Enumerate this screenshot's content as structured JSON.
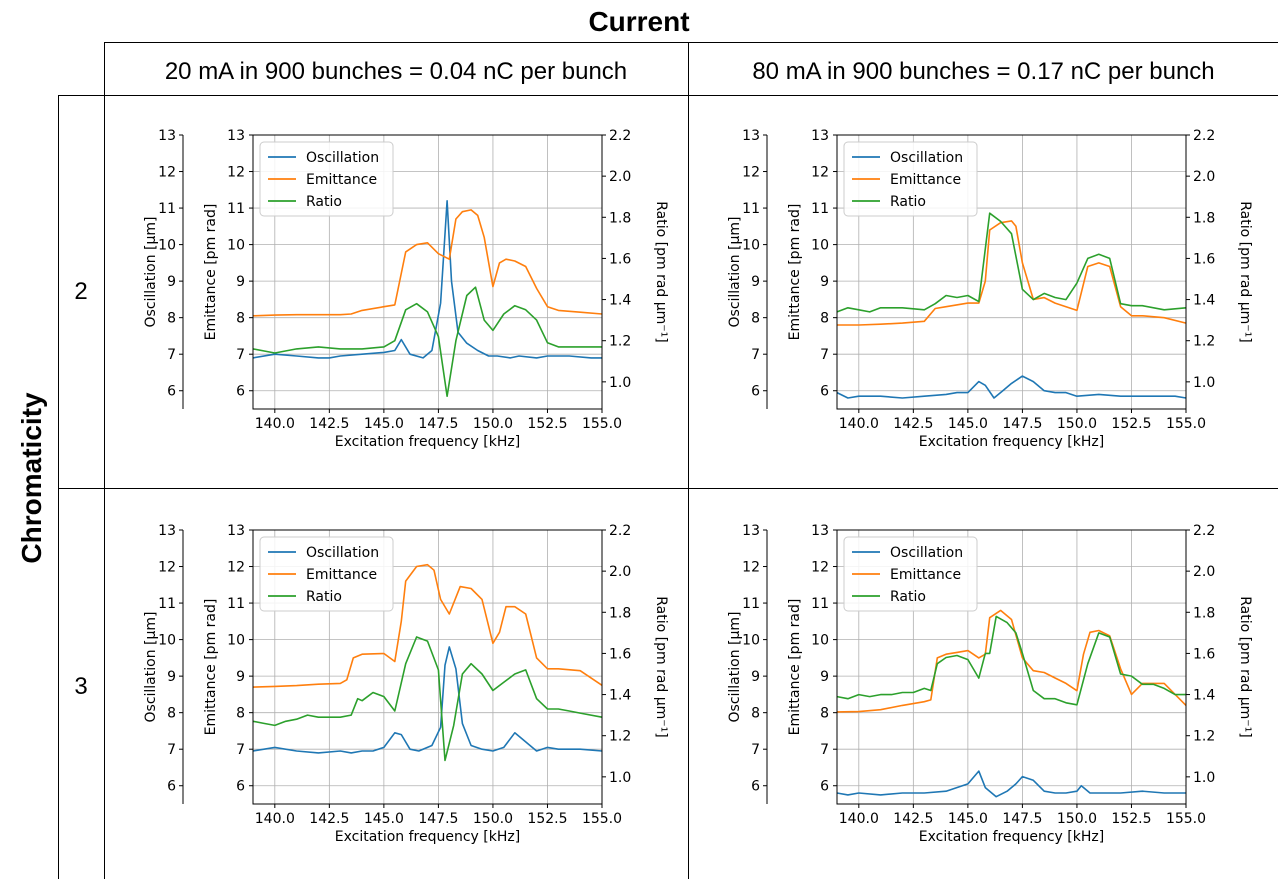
{
  "header": {
    "column_title": "Current",
    "row_title": "Chromaticity",
    "columns": [
      "20 mA in 900 bunches = 0.04 nC per bunch",
      "80 mA in 900 bunches = 0.17 nC per bunch"
    ],
    "rows": [
      "2",
      "3"
    ]
  },
  "colors": {
    "oscillation": "#1f77b4",
    "emittance": "#ff7f0e",
    "ratio": "#2ca02c"
  },
  "chart_data": [
    {
      "type": "line",
      "panel": "chromaticity-2-20mA",
      "xlabel": "Excitation frequency [kHz]",
      "ylabel_osc": "Oscillation [µm]",
      "ylabel_emit": "Emittance [pm rad]",
      "ylabel_ratio": "Ratio [pm rad µm⁻¹]",
      "xlim": [
        139,
        155
      ],
      "xticks": [
        "140.0",
        "142.5",
        "145.0",
        "147.5",
        "150.0",
        "152.5",
        "155.0"
      ],
      "ylim": [
        5.5,
        13
      ],
      "yticks": [
        "6",
        "7",
        "8",
        "9",
        "10",
        "11",
        "12",
        "13"
      ],
      "ratio_lim": [
        0.868,
        2.2
      ],
      "ratio_ticks": [
        "1.0",
        "1.2",
        "1.4",
        "1.6",
        "1.8",
        "2.0",
        "2.2"
      ],
      "legend": [
        "Oscillation",
        "Emittance",
        "Ratio"
      ],
      "grid": true,
      "series": [
        {
          "name": "Oscillation",
          "axis": "left",
          "x": [
            139,
            140,
            141,
            142,
            142.5,
            143,
            144,
            145,
            145.5,
            145.8,
            146.2,
            146.8,
            147.2,
            147.6,
            147.9,
            148.1,
            148.4,
            148.8,
            149.3,
            149.8,
            150.2,
            150.8,
            151.2,
            152,
            152.5,
            153.5,
            154.5,
            155
          ],
          "y": [
            6.9,
            7,
            6.95,
            6.9,
            6.9,
            6.95,
            7,
            7.05,
            7.1,
            7.4,
            7,
            6.9,
            7.1,
            8.4,
            11.2,
            9,
            7.6,
            7.3,
            7.1,
            6.95,
            6.95,
            6.9,
            6.95,
            6.9,
            6.95,
            6.95,
            6.9,
            6.9
          ]
        },
        {
          "name": "Emittance",
          "axis": "left",
          "x": [
            139,
            140,
            141,
            142,
            143,
            143.5,
            144,
            145,
            145.5,
            146,
            146.5,
            147,
            147.5,
            148,
            148.3,
            148.6,
            149,
            149.3,
            149.6,
            150,
            150.3,
            150.6,
            151,
            151.5,
            152,
            152.5,
            153,
            154,
            155
          ],
          "y": [
            8.05,
            8.07,
            8.08,
            8.08,
            8.08,
            8.1,
            8.2,
            8.3,
            8.35,
            9.8,
            10,
            10.05,
            9.75,
            9.6,
            10.7,
            10.9,
            10.95,
            10.8,
            10.2,
            8.85,
            9.5,
            9.6,
            9.55,
            9.4,
            8.8,
            8.3,
            8.2,
            8.15,
            8.1
          ]
        },
        {
          "name": "Ratio",
          "axis": "right",
          "x": [
            139,
            140,
            141,
            142,
            143,
            144,
            145,
            145.5,
            146,
            146.5,
            147,
            147.5,
            147.9,
            148.3,
            148.8,
            149.2,
            149.6,
            150,
            150.5,
            151,
            151.5,
            152,
            152.5,
            153,
            154,
            155
          ],
          "y": [
            1.16,
            1.14,
            1.16,
            1.17,
            1.16,
            1.16,
            1.17,
            1.2,
            1.35,
            1.38,
            1.34,
            1.22,
            0.93,
            1.2,
            1.42,
            1.46,
            1.3,
            1.25,
            1.33,
            1.37,
            1.35,
            1.3,
            1.19,
            1.17,
            1.17,
            1.17
          ]
        }
      ]
    },
    {
      "type": "line",
      "panel": "chromaticity-2-80mA",
      "xlabel": "Excitation frequency [kHz]",
      "ylabel_osc": "Oscillation [µm]",
      "ylabel_emit": "Emittance [pm rad]",
      "ylabel_ratio": "Ratio [pm rad µm⁻¹]",
      "xlim": [
        139,
        155
      ],
      "xticks": [
        "140.0",
        "142.5",
        "145.0",
        "147.5",
        "150.0",
        "152.5",
        "155.0"
      ],
      "ylim": [
        5.5,
        13
      ],
      "yticks": [
        "6",
        "7",
        "8",
        "9",
        "10",
        "11",
        "12",
        "13"
      ],
      "ratio_lim": [
        0.868,
        2.2
      ],
      "ratio_ticks": [
        "1.0",
        "1.2",
        "1.4",
        "1.6",
        "1.8",
        "2.0",
        "2.2"
      ],
      "legend": [
        "Oscillation",
        "Emittance",
        "Ratio"
      ],
      "grid": true,
      "series": [
        {
          "name": "Oscillation",
          "axis": "left",
          "x": [
            139,
            139.5,
            140,
            141,
            142,
            143,
            144,
            144.5,
            145,
            145.5,
            145.8,
            146.2,
            146.6,
            147,
            147.5,
            148,
            148.5,
            149,
            149.5,
            150,
            151,
            152,
            153,
            154,
            154.5,
            155
          ],
          "y": [
            5.95,
            5.8,
            5.85,
            5.85,
            5.8,
            5.85,
            5.9,
            5.95,
            5.95,
            6.25,
            6.15,
            5.8,
            6,
            6.2,
            6.4,
            6.25,
            6,
            5.95,
            5.95,
            5.85,
            5.9,
            5.85,
            5.85,
            5.85,
            5.85,
            5.8
          ]
        },
        {
          "name": "Emittance",
          "axis": "left",
          "x": [
            139,
            140,
            141,
            142,
            143,
            143.5,
            144,
            145,
            145.5,
            145.8,
            146,
            146.5,
            147,
            147.2,
            147.5,
            148,
            148.5,
            149,
            149.5,
            150,
            150.5,
            151,
            151.5,
            152,
            152.5,
            153,
            154,
            155
          ],
          "y": [
            7.8,
            7.8,
            7.82,
            7.85,
            7.9,
            8.25,
            8.3,
            8.4,
            8.4,
            9,
            10.4,
            10.6,
            10.65,
            10.5,
            9.5,
            8.5,
            8.55,
            8.4,
            8.3,
            8.2,
            9.4,
            9.5,
            9.4,
            8.3,
            8.05,
            8.05,
            8,
            7.85
          ]
        },
        {
          "name": "Ratio",
          "axis": "right",
          "x": [
            139,
            139.5,
            140,
            140.5,
            141,
            141.5,
            142,
            143,
            143.5,
            144,
            144.5,
            145,
            145.5,
            146,
            146.5,
            147,
            147.5,
            148,
            148.5,
            149,
            149.5,
            150,
            150.5,
            151,
            151.5,
            152,
            152.5,
            153,
            154,
            155
          ],
          "y": [
            1.34,
            1.36,
            1.35,
            1.34,
            1.36,
            1.36,
            1.36,
            1.35,
            1.38,
            1.42,
            1.41,
            1.42,
            1.39,
            1.82,
            1.78,
            1.72,
            1.45,
            1.4,
            1.43,
            1.41,
            1.4,
            1.48,
            1.6,
            1.62,
            1.6,
            1.38,
            1.37,
            1.37,
            1.35,
            1.36
          ]
        }
      ]
    },
    {
      "type": "line",
      "panel": "chromaticity-3-20mA",
      "xlabel": "Excitation frequency [kHz]",
      "ylabel_osc": "Oscillation [µm]",
      "ylabel_emit": "Emittance [pm rad]",
      "ylabel_ratio": "Ratio [pm rad µm⁻¹]",
      "xlim": [
        139,
        155
      ],
      "xticks": [
        "140.0",
        "142.5",
        "145.0",
        "147.5",
        "150.0",
        "152.5",
        "155.0"
      ],
      "ylim": [
        5.5,
        13
      ],
      "yticks": [
        "6",
        "7",
        "8",
        "9",
        "10",
        "11",
        "12",
        "13"
      ],
      "ratio_lim": [
        0.868,
        2.2
      ],
      "ratio_ticks": [
        "1.0",
        "1.2",
        "1.4",
        "1.6",
        "1.8",
        "2.0",
        "2.2"
      ],
      "legend": [
        "Oscillation",
        "Emittance",
        "Ratio"
      ],
      "grid": true,
      "series": [
        {
          "name": "Oscillation",
          "axis": "left",
          "x": [
            139,
            140,
            141,
            142,
            143,
            143.5,
            144,
            144.5,
            145,
            145.5,
            145.8,
            146.2,
            146.6,
            147.2,
            147.6,
            147.8,
            148,
            148.3,
            148.6,
            149,
            149.5,
            150,
            150.5,
            151,
            151.5,
            152,
            152.5,
            153,
            154,
            155
          ],
          "y": [
            6.95,
            7.05,
            6.95,
            6.9,
            6.95,
            6.9,
            6.95,
            6.95,
            7.05,
            7.45,
            7.4,
            7,
            6.95,
            7.1,
            7.6,
            9.3,
            9.8,
            9.2,
            7.7,
            7.1,
            7,
            6.95,
            7.05,
            7.45,
            7.2,
            6.95,
            7.05,
            7,
            7,
            6.95
          ]
        },
        {
          "name": "Emittance",
          "axis": "left",
          "x": [
            139,
            140,
            141,
            142,
            143,
            143.3,
            143.6,
            144,
            145,
            145.5,
            145.8,
            146,
            146.5,
            147,
            147.3,
            147.6,
            148,
            148.5,
            149,
            149.5,
            150,
            150.3,
            150.6,
            151,
            151.5,
            152,
            152.5,
            153,
            154,
            155
          ],
          "y": [
            8.7,
            8.72,
            8.74,
            8.78,
            8.8,
            8.9,
            9.5,
            9.6,
            9.62,
            9.4,
            10.5,
            11.6,
            12,
            12.05,
            11.9,
            11.1,
            10.7,
            11.45,
            11.4,
            11.1,
            9.9,
            10.2,
            10.9,
            10.9,
            10.7,
            9.5,
            9.2,
            9.2,
            9.15,
            8.75
          ]
        },
        {
          "name": "Ratio",
          "axis": "right",
          "x": [
            139,
            139.5,
            140,
            140.5,
            141,
            141.5,
            142,
            143,
            143.5,
            143.8,
            144,
            144.5,
            145,
            145.5,
            146,
            146.5,
            147,
            147.5,
            147.8,
            148.2,
            148.6,
            149,
            149.5,
            150,
            150.5,
            151,
            151.5,
            152,
            152.5,
            153,
            153.5,
            154,
            155
          ],
          "y": [
            1.27,
            1.26,
            1.25,
            1.27,
            1.28,
            1.3,
            1.29,
            1.29,
            1.3,
            1.38,
            1.37,
            1.41,
            1.39,
            1.32,
            1.55,
            1.68,
            1.66,
            1.52,
            1.08,
            1.25,
            1.5,
            1.55,
            1.5,
            1.42,
            1.46,
            1.5,
            1.52,
            1.38,
            1.33,
            1.33,
            1.32,
            1.31,
            1.29
          ]
        }
      ]
    },
    {
      "type": "line",
      "panel": "chromaticity-3-80mA",
      "xlabel": "Excitation frequency [kHz]",
      "ylabel_osc": "Oscillation [µm]",
      "ylabel_emit": "Emittance [pm rad]",
      "ylabel_ratio": "Ratio [pm rad µm⁻¹]",
      "xlim": [
        139,
        155
      ],
      "xticks": [
        "140.0",
        "142.5",
        "145.0",
        "147.5",
        "150.0",
        "152.5",
        "155.0"
      ],
      "ylim": [
        5.5,
        13
      ],
      "yticks": [
        "6",
        "7",
        "8",
        "9",
        "10",
        "11",
        "12",
        "13"
      ],
      "ratio_lim": [
        0.868,
        2.2
      ],
      "ratio_ticks": [
        "1.0",
        "1.2",
        "1.4",
        "1.6",
        "1.8",
        "2.0",
        "2.2"
      ],
      "legend": [
        "Oscillation",
        "Emittance",
        "Ratio"
      ],
      "grid": true,
      "series": [
        {
          "name": "Oscillation",
          "axis": "left",
          "x": [
            139,
            139.5,
            140,
            141,
            142,
            143,
            144,
            145,
            145.5,
            145.8,
            146.3,
            146.8,
            147.2,
            147.5,
            148,
            148.5,
            149,
            149.5,
            150,
            150.2,
            150.6,
            151,
            152,
            153,
            154,
            155
          ],
          "y": [
            5.8,
            5.75,
            5.8,
            5.75,
            5.8,
            5.8,
            5.85,
            6.05,
            6.4,
            5.95,
            5.7,
            5.85,
            6.05,
            6.25,
            6.15,
            5.85,
            5.8,
            5.8,
            5.85,
            6,
            5.8,
            5.8,
            5.8,
            5.85,
            5.8,
            5.8
          ]
        },
        {
          "name": "Emittance",
          "axis": "left",
          "x": [
            139,
            140,
            141,
            142,
            143,
            143.3,
            143.6,
            144,
            144.5,
            145,
            145.5,
            145.8,
            146,
            146.5,
            147,
            147.5,
            148,
            148.5,
            149,
            149.5,
            150,
            150.3,
            150.6,
            151,
            151.5,
            152,
            152.5,
            153,
            154,
            155
          ],
          "y": [
            8.02,
            8.03,
            8.08,
            8.2,
            8.3,
            8.35,
            9.5,
            9.6,
            9.65,
            9.7,
            9.5,
            9.6,
            10.6,
            10.8,
            10.55,
            9.5,
            9.15,
            9.1,
            8.95,
            8.8,
            8.6,
            9.6,
            10.2,
            10.25,
            10.1,
            9.2,
            8.5,
            8.8,
            8.8,
            8.2
          ]
        },
        {
          "name": "Ratio",
          "axis": "right",
          "x": [
            139,
            139.5,
            140,
            140.5,
            141,
            141.5,
            142,
            142.5,
            143,
            143.3,
            143.6,
            144,
            144.5,
            145,
            145.5,
            145.8,
            146,
            146.3,
            146.8,
            147.2,
            147.5,
            148,
            148.5,
            149,
            149.5,
            150,
            150.5,
            151,
            151.5,
            152,
            152.5,
            153,
            153.5,
            154,
            154.5,
            155
          ],
          "y": [
            1.39,
            1.38,
            1.4,
            1.39,
            1.4,
            1.4,
            1.41,
            1.41,
            1.43,
            1.42,
            1.55,
            1.58,
            1.59,
            1.57,
            1.48,
            1.6,
            1.6,
            1.78,
            1.75,
            1.7,
            1.6,
            1.42,
            1.38,
            1.38,
            1.36,
            1.35,
            1.55,
            1.7,
            1.68,
            1.5,
            1.49,
            1.45,
            1.45,
            1.43,
            1.4,
            1.4
          ]
        }
      ]
    }
  ]
}
